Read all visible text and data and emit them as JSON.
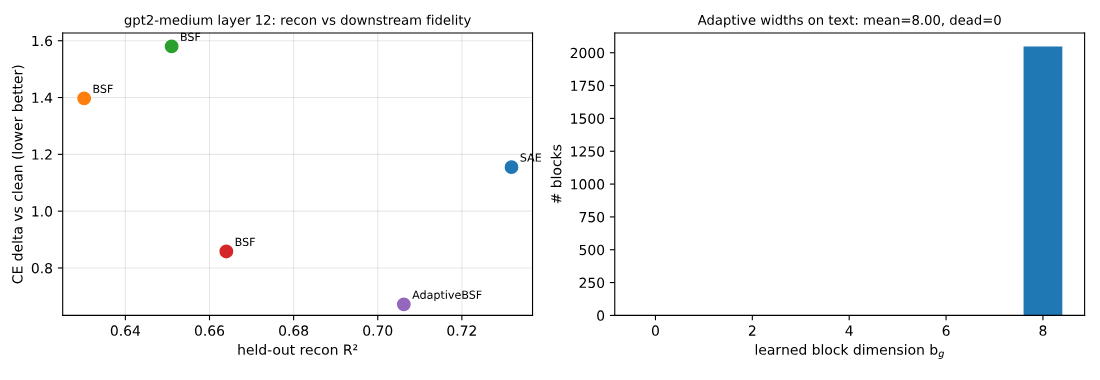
{
  "chart_data": [
    {
      "type": "scatter",
      "title": "gpt2-medium layer 12: recon vs downstream fidelity",
      "xlabel": "held-out recon R²",
      "ylabel": "CE delta vs clean (lower better)",
      "x": [
        0.7318,
        0.6302,
        0.651,
        0.664,
        0.7062
      ],
      "values": [
        1.155,
        1.397,
        1.58,
        0.858,
        0.672
      ],
      "colors": [
        "#1f77b4",
        "#ff7f0e",
        "#2ca02c",
        "#d62728",
        "#9467bd"
      ],
      "annotations": [
        {
          "text": "SAE",
          "x": 0.7318,
          "y": 1.155
        },
        {
          "text": "BSF",
          "x": 0.6302,
          "y": 1.397
        },
        {
          "text": "BSF",
          "x": 0.651,
          "y": 1.58
        },
        {
          "text": "BSF",
          "x": 0.664,
          "y": 0.858
        },
        {
          "text": "AdaptiveBSF",
          "x": 0.7062,
          "y": 0.672
        }
      ],
      "xlim": [
        0.6251,
        0.7368
      ],
      "ylim": [
        0.633,
        1.627
      ],
      "xticks": [
        0.64,
        0.66,
        0.68,
        {
          "value": 0.7,
          "label": "0.70"
        },
        {
          "value": 0.72,
          "label": "0.72"
        }
      ],
      "yticks": [
        {
          "value": 0.8,
          "label": "0.8"
        },
        {
          "value": 1.0,
          "label": "1.0"
        },
        {
          "value": 1.2,
          "label": "1.2"
        },
        {
          "value": 1.4,
          "label": "1.4"
        },
        {
          "value": 1.6,
          "label": "1.6"
        }
      ],
      "grid": true,
      "marker": "circle"
    },
    {
      "type": "bar",
      "title": "Adaptive widths on text: mean=8.00, dead=0",
      "xlabel": "learned block dimension b$_{g}$",
      "ylabel": "# blocks",
      "x": [
        8
      ],
      "values": [
        2048
      ],
      "color": "#1f77b4",
      "xlim": [
        -0.84,
        8.86
      ],
      "ylim": [
        0,
        2150
      ],
      "xticks": [
        0,
        2,
        4,
        6,
        8
      ],
      "yticks": [
        0,
        250,
        500,
        750,
        1000,
        1250,
        1500,
        1750,
        2000
      ],
      "grid": false
    }
  ]
}
